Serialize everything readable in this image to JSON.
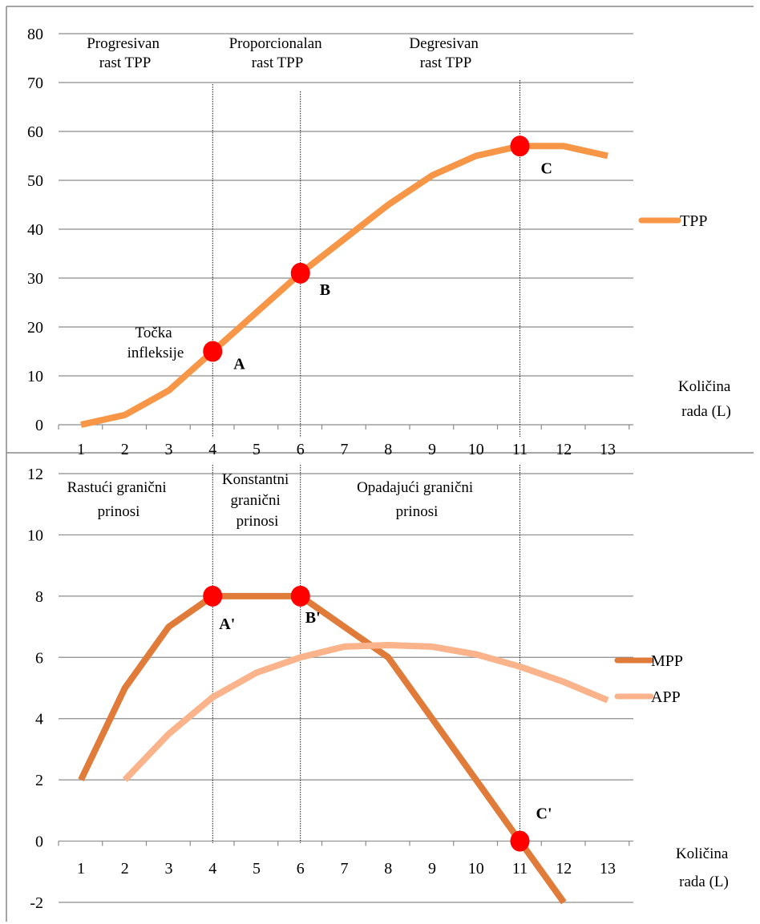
{
  "chart_data": [
    {
      "type": "line",
      "title": "",
      "xlabel": "Količina rada (L)",
      "xlabel_lines": [
        "Količina",
        "rada (L)"
      ],
      "ylabel": "",
      "x": [
        1,
        2,
        3,
        4,
        5,
        6,
        7,
        8,
        9,
        10,
        11,
        12,
        13
      ],
      "ylim": [
        0,
        80
      ],
      "yticks": [
        0,
        10,
        20,
        30,
        40,
        50,
        60,
        70,
        80
      ],
      "grid": true,
      "legend": "right",
      "series": [
        {
          "name": "TPP",
          "color": "#f79646",
          "values": [
            0,
            2,
            7,
            15,
            23,
            31,
            38,
            45,
            51,
            55,
            57,
            57,
            55
          ]
        }
      ],
      "stages": [
        {
          "lines": [
            "Progresivan",
            "rast TPP"
          ]
        },
        {
          "lines": [
            "Proporcionalan",
            "rast TPP"
          ]
        },
        {
          "lines": [
            "Degresivan",
            "rast TPP"
          ]
        }
      ],
      "inflection_label": [
        "Točka",
        "infleksije"
      ],
      "points": [
        {
          "label": "A",
          "x": 4,
          "y": 15
        },
        {
          "label": "B",
          "x": 6,
          "y": 31
        },
        {
          "label": "C",
          "x": 11,
          "y": 57
        }
      ],
      "marker_color": "#ff0000"
    },
    {
      "type": "line",
      "title": "",
      "xlabel": "Količina rada (L)",
      "xlabel_lines": [
        "Količina",
        "rada (L)"
      ],
      "ylabel": "",
      "x": [
        1,
        2,
        3,
        4,
        5,
        6,
        7,
        8,
        9,
        10,
        11,
        12,
        13
      ],
      "ylim": [
        -2,
        12
      ],
      "yticks": [
        -2,
        0,
        2,
        4,
        6,
        8,
        10,
        12
      ],
      "grid": true,
      "legend": "right",
      "series": [
        {
          "name": "MPP",
          "color": "#e07b39",
          "x": [
            1,
            2,
            3,
            4,
            5,
            6,
            7,
            8,
            9,
            10,
            11,
            12
          ],
          "values": [
            2,
            5,
            7,
            8,
            8,
            8,
            7,
            6,
            4,
            2,
            0,
            -2
          ]
        },
        {
          "name": "APP",
          "color": "#fab38a",
          "x": [
            2,
            3,
            4,
            5,
            6,
            7,
            8,
            9,
            10,
            11,
            12,
            13
          ],
          "values": [
            2,
            3.5,
            4.7,
            5.5,
            6,
            6.35,
            6.4,
            6.35,
            6.1,
            5.7,
            5.2,
            4.6
          ]
        }
      ],
      "stages": [
        {
          "lines": [
            "Rastući granični",
            "prinosi"
          ]
        },
        {
          "lines": [
            "Konstantni",
            "granični",
            "prinosi"
          ]
        },
        {
          "lines": [
            "Opadajući granični",
            "prinosi"
          ]
        }
      ],
      "points": [
        {
          "label": "A'",
          "x": 4,
          "y": 8
        },
        {
          "label": "B'",
          "x": 6,
          "y": 8
        },
        {
          "label": "C'",
          "x": 11,
          "y": 0
        }
      ],
      "marker_color": "#ff0000"
    }
  ]
}
